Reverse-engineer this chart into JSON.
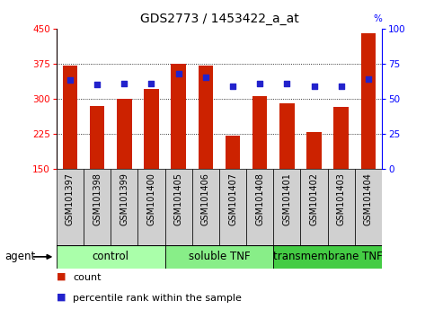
{
  "title": "GDS2773 / 1453422_a_at",
  "samples": [
    "GSM101397",
    "GSM101398",
    "GSM101399",
    "GSM101400",
    "GSM101405",
    "GSM101406",
    "GSM101407",
    "GSM101408",
    "GSM101401",
    "GSM101402",
    "GSM101403",
    "GSM101404"
  ],
  "counts": [
    370,
    285,
    300,
    320,
    375,
    370,
    220,
    305,
    290,
    228,
    283,
    440
  ],
  "percentiles": [
    63,
    60,
    61,
    61,
    68,
    65,
    59,
    61,
    61,
    59,
    59,
    64
  ],
  "groups": [
    {
      "label": "control",
      "start": 0,
      "end": 4,
      "color": "#aaffaa"
    },
    {
      "label": "soluble TNF",
      "start": 4,
      "end": 8,
      "color": "#88ee88"
    },
    {
      "label": "transmembrane TNF",
      "start": 8,
      "end": 12,
      "color": "#44cc44"
    }
  ],
  "ymin": 150,
  "ymax": 450,
  "yticks_left": [
    150,
    225,
    300,
    375,
    450
  ],
  "yticks_right": [
    0,
    25,
    50,
    75,
    100
  ],
  "bar_color": "#cc2200",
  "dot_color": "#2222cc",
  "bar_bottom": 150,
  "bar_width": 0.55,
  "legend_count_label": "count",
  "legend_pct_label": "percentile rank within the sample",
  "agent_label": "agent",
  "title_fontsize": 10,
  "tick_fontsize": 7.5,
  "group_fontsize": 8.5,
  "legend_fontsize": 8,
  "background_color": "#ffffff"
}
